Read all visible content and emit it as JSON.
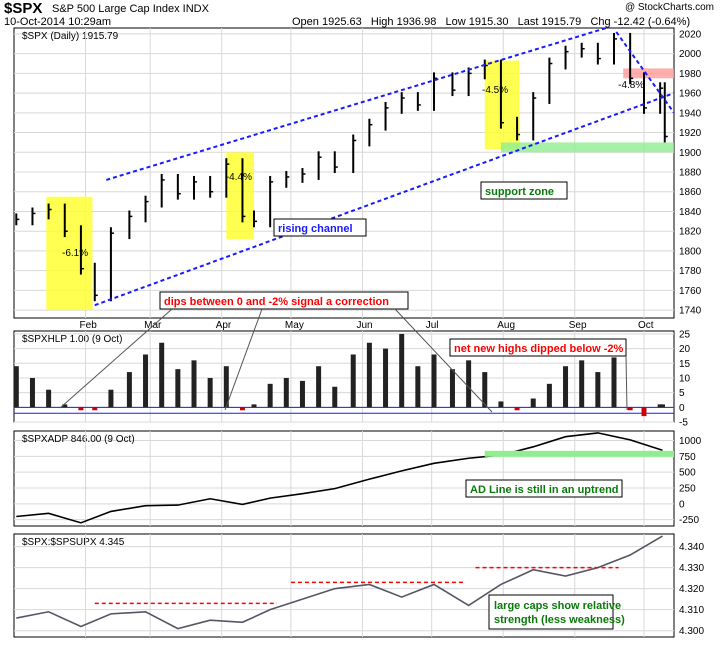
{
  "header": {
    "ticker": "$SPX",
    "name": "S&P 500 Large Cap Index  INDX",
    "date": "10-Oct-2014 10:29am",
    "ohlc": "Open 1925.63   High 1936.98   Low 1915.30   Last 1915.79   Chg -12.42 (-0.64%)",
    "credit": "@ StockCharts.com"
  },
  "colors": {
    "price_bars": "#000000",
    "highlight_fill": "#ffff33",
    "channel": "#1a1aff",
    "support_zone": "#90ee90",
    "resistance_zone": "#ff9999",
    "annotation_red": "#ff0000",
    "histogram_neg": "#cc0000",
    "label_border": "#1a1aff"
  },
  "xaxis_months": [
    "Feb",
    "Mar",
    "Apr",
    "May",
    "Jun",
    "Jul",
    "Aug",
    "Sep",
    "Oct"
  ],
  "chart_data": [
    {
      "type": "line",
      "title": "$SPX (Daily) 1915.79",
      "yticks": [
        1740,
        1760,
        1780,
        1800,
        1820,
        1840,
        1860,
        1880,
        1900,
        1920,
        1940,
        1960,
        1980,
        2000,
        2020
      ],
      "ylim": [
        1732,
        2026
      ],
      "x": [
        "2014-01-02",
        "2014-01-09",
        "2014-01-16",
        "2014-01-23",
        "2014-01-30",
        "2014-02-05",
        "2014-02-12",
        "2014-02-20",
        "2014-02-27",
        "2014-03-06",
        "2014-03-13",
        "2014-03-20",
        "2014-03-27",
        "2014-04-03",
        "2014-04-10",
        "2014-04-15",
        "2014-04-22",
        "2014-04-29",
        "2014-05-06",
        "2014-05-13",
        "2014-05-20",
        "2014-05-28",
        "2014-06-04",
        "2014-06-11",
        "2014-06-18",
        "2014-06-25",
        "2014-07-02",
        "2014-07-10",
        "2014-07-17",
        "2014-07-24",
        "2014-07-31",
        "2014-08-07",
        "2014-08-14",
        "2014-08-21",
        "2014-08-28",
        "2014-09-04",
        "2014-09-11",
        "2014-09-18",
        "2014-09-25",
        "2014-10-01",
        "2014-10-08",
        "2014-10-10"
      ],
      "values": [
        1832,
        1838,
        1842,
        1820,
        1782,
        1755,
        1818,
        1835,
        1850,
        1872,
        1858,
        1870,
        1860,
        1888,
        1835,
        1830,
        1870,
        1875,
        1878,
        1895,
        1885,
        1912,
        1928,
        1945,
        1955,
        1948,
        1975,
        1963,
        1980,
        1988,
        1930,
        1918,
        1955,
        1990,
        2002,
        2005,
        1995,
        2015,
        1975,
        1945,
        1965,
        1916
      ],
      "annotations": [
        {
          "label": "-6.1%",
          "x": "2014-01-27"
        },
        {
          "label": "-4.4%",
          "x": "2014-04-08"
        },
        {
          "label": "-4.5%",
          "x": "2014-07-28"
        },
        {
          "label": "-4.8%",
          "x": "2014-09-25"
        }
      ],
      "text_boxes": {
        "rising_channel": "rising channel",
        "support_zone": "support zone"
      },
      "support_zone_range": [
        1900,
        1910
      ],
      "resistance_zone_range": [
        1975,
        1985
      ]
    },
    {
      "type": "bar",
      "title": "$SPXHLP 1.00 (9 Oct)",
      "yticks": [
        -5,
        0,
        5,
        10,
        15,
        20,
        25
      ],
      "ylim": [
        -5,
        26
      ],
      "x": [
        "2014-01-02",
        "2014-01-09",
        "2014-01-16",
        "2014-01-23",
        "2014-01-30",
        "2014-02-05",
        "2014-02-12",
        "2014-02-20",
        "2014-02-27",
        "2014-03-06",
        "2014-03-13",
        "2014-03-20",
        "2014-03-27",
        "2014-04-03",
        "2014-04-10",
        "2014-04-15",
        "2014-04-22",
        "2014-04-29",
        "2014-05-06",
        "2014-05-13",
        "2014-05-20",
        "2014-05-28",
        "2014-06-04",
        "2014-06-11",
        "2014-06-18",
        "2014-06-25",
        "2014-07-02",
        "2014-07-10",
        "2014-07-17",
        "2014-07-24",
        "2014-07-31",
        "2014-08-07",
        "2014-08-14",
        "2014-08-21",
        "2014-08-28",
        "2014-09-04",
        "2014-09-11",
        "2014-09-18",
        "2014-09-25",
        "2014-10-01",
        "2014-10-08",
        "2014-10-09"
      ],
      "values": [
        14,
        10,
        6,
        1,
        -1,
        -1,
        6,
        12,
        18,
        22,
        13,
        16,
        10,
        14,
        -1,
        1,
        8,
        10,
        9,
        14,
        7,
        18,
        22,
        20,
        25,
        14,
        18,
        13,
        16,
        12,
        2,
        -1,
        3,
        8,
        14,
        16,
        12,
        17,
        -1,
        -3,
        1,
        1
      ],
      "text_boxes": {
        "correction": "dips between 0 and -2% signal a correction",
        "net_new_highs": "net new highs dipped below -2%"
      }
    },
    {
      "type": "line",
      "title": "$SPXADP 846.00 (9 Oct)",
      "yticks": [
        -250,
        0,
        250,
        500,
        750,
        1000
      ],
      "ylim": [
        -350,
        1150
      ],
      "x": [
        "2014-01-02",
        "2014-01-16",
        "2014-01-30",
        "2014-02-12",
        "2014-02-27",
        "2014-03-13",
        "2014-03-27",
        "2014-04-10",
        "2014-04-22",
        "2014-05-06",
        "2014-05-20",
        "2014-06-04",
        "2014-06-18",
        "2014-07-02",
        "2014-07-17",
        "2014-07-31",
        "2014-08-14",
        "2014-08-28",
        "2014-09-11",
        "2014-09-25",
        "2014-10-09"
      ],
      "values": [
        -200,
        -150,
        -300,
        -120,
        -30,
        -20,
        80,
        -10,
        90,
        160,
        240,
        390,
        520,
        640,
        720,
        770,
        900,
        1060,
        1120,
        1010,
        846
      ],
      "text_boxes": {
        "ad_line": "AD Line is still in an uptrend"
      }
    },
    {
      "type": "line",
      "title": "$SPX:$SPSUPX 4.345",
      "yticks": [
        4.3,
        4.31,
        4.32,
        4.33,
        4.34
      ],
      "ylim": [
        4.297,
        4.346
      ],
      "x": [
        "2014-01-02",
        "2014-01-16",
        "2014-01-30",
        "2014-02-12",
        "2014-02-27",
        "2014-03-13",
        "2014-03-27",
        "2014-04-10",
        "2014-04-22",
        "2014-05-06",
        "2014-05-20",
        "2014-06-04",
        "2014-06-18",
        "2014-07-02",
        "2014-07-17",
        "2014-07-31",
        "2014-08-14",
        "2014-08-28",
        "2014-09-11",
        "2014-09-25",
        "2014-10-09"
      ],
      "values": [
        4.306,
        4.309,
        4.302,
        4.308,
        4.309,
        4.301,
        4.305,
        4.304,
        4.31,
        4.315,
        4.32,
        4.322,
        4.316,
        4.322,
        4.312,
        4.322,
        4.329,
        4.326,
        4.33,
        4.336,
        4.345
      ],
      "text_boxes": {
        "large_caps": "large caps show relative strength (less weakness)"
      }
    }
  ]
}
